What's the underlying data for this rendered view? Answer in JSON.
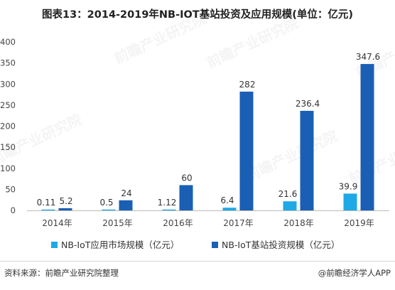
{
  "title": "图表13：2014-2019年NB-IOT基站投资及应用规模(单位：亿元)",
  "source": "资料来源：前瞻产业研究院整理",
  "publisher": "@前瞻经济学人APP",
  "watermark": "前瞻产业研究院",
  "colors": {
    "series1": "#1ea9e6",
    "series2": "#1a5fb4",
    "axis": "#bbbbbb",
    "text": "#444444"
  },
  "chart_data": {
    "type": "bar",
    "categories": [
      "2014年",
      "2015年",
      "2016年",
      "2017年",
      "2018年",
      "2019年"
    ],
    "series": [
      {
        "name": "NB-IoT应用市场规模（亿元）",
        "values": [
          0.11,
          0.5,
          1.12,
          6.4,
          21.6,
          39.9
        ],
        "labels": [
          "0.11",
          "0.5",
          "1.12",
          "6.4",
          "21.6",
          "39.9"
        ]
      },
      {
        "name": "NB-IoT基站投资规模（亿元）",
        "values": [
          5.2,
          24,
          60,
          282,
          236.4,
          347.6
        ],
        "labels": [
          "5.2",
          "24",
          "60",
          "282",
          "236.4",
          "347.6"
        ]
      }
    ],
    "yticks": [
      0,
      50,
      100,
      150,
      200,
      250,
      300,
      350,
      400
    ],
    "ylim": [
      0,
      400
    ],
    "grid": false,
    "legend": "bottom"
  }
}
